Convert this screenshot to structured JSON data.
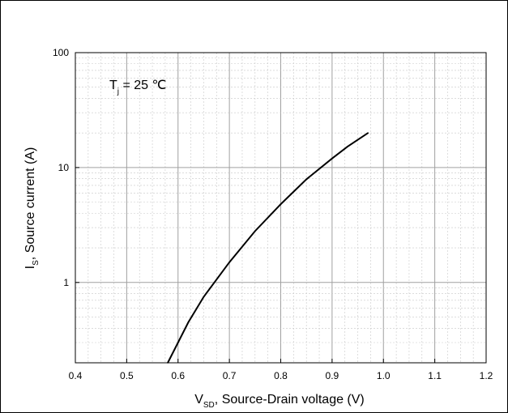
{
  "chart_data": {
    "type": "line",
    "title": "",
    "annotation": {
      "main": "T",
      "sub": "j",
      "rest": " = 25 ℃"
    },
    "xlabel": {
      "main": "V",
      "sub": "SD",
      "rest": ", Source-Drain voltage (V)"
    },
    "ylabel": {
      "main": "I",
      "sub": "S",
      "rest": ", Source current (A)"
    },
    "xlim": [
      0.4,
      1.2
    ],
    "ylim": [
      0.2,
      100
    ],
    "yscale": "log",
    "grid": true,
    "x_ticks": [
      0.4,
      0.5,
      0.6,
      0.7,
      0.8,
      0.9,
      1.0,
      1.1,
      1.2
    ],
    "x_tick_labels": [
      "0.4",
      "0.5",
      "0.6",
      "0.7",
      "0.8",
      "0.9",
      "1.0",
      "1.1",
      "1.2"
    ],
    "y_ticks": [
      1,
      10,
      100
    ],
    "y_tick_labels": [
      "1",
      "10",
      "100"
    ],
    "series": [
      {
        "x": [
          0.58,
          0.6,
          0.62,
          0.65,
          0.7,
          0.75,
          0.8,
          0.85,
          0.9,
          0.93,
          0.97
        ],
        "y": [
          0.2,
          0.3,
          0.45,
          0.75,
          1.5,
          2.8,
          4.8,
          7.9,
          12.0,
          15.2,
          20.0
        ]
      }
    ],
    "colors": {
      "line": "#000000",
      "major_grid": "#a0a0a0",
      "minor_grid": "#c8c8c8"
    }
  }
}
